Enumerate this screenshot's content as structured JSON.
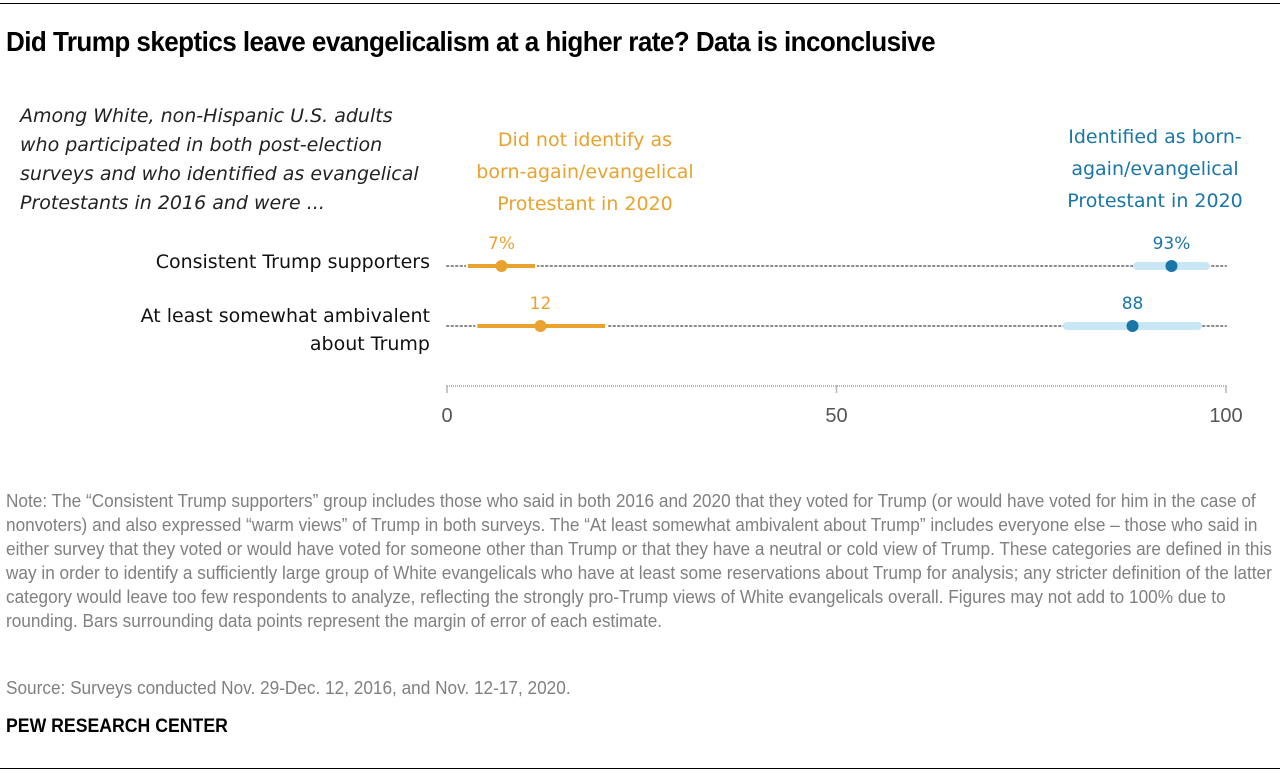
{
  "header": {
    "title": "Did Trump skeptics leave evangelicalism at a higher rate? Data is inconclusive",
    "subtitle": "Among White, non-Hispanic U.S. adults who participated in both post-election surveys and who identified as evangelical Protestants in 2016 and were ..."
  },
  "colors": {
    "orange": "#e9a22d",
    "blue": "#1a76a6",
    "blue_light": "#c9e6f4",
    "dots": "#8a8a8a",
    "axis": "#b5b5b5"
  },
  "chart_data": {
    "type": "scatter",
    "subtype": "dot-plot-with-error-bars",
    "title": "Did Trump skeptics leave evangelicalism at a higher rate? Data is inconclusive",
    "xlabel": "",
    "ylabel": "",
    "xlim": [
      0,
      100
    ],
    "x_ticks": [
      "0",
      "50",
      "100"
    ],
    "x_tick_values": [
      0,
      50,
      100
    ],
    "grid": false,
    "legend_placement": "top",
    "categories": [
      "Consistent Trump supporters",
      "At least somewhat ambivalent about Trump"
    ],
    "category_lines": [
      [
        "Consistent Trump supporters"
      ],
      [
        "At least somewhat ambivalent",
        "about Trump"
      ]
    ],
    "series": [
      {
        "name": "Did not identify as born-again/evangelical Protestant in 2020",
        "legend_lines": [
          "Did not identify as",
          "born-again/evangelical",
          "Protestant in 2020"
        ],
        "color": "#e9a22d",
        "values": [
          7,
          12
        ],
        "labels": [
          "7%",
          "12"
        ],
        "error_low": [
          2.7,
          3.9
        ],
        "error_high": [
          11.3,
          20.3
        ]
      },
      {
        "name": "Identified as born-again/evangelical Protestant in 2020",
        "legend_lines": [
          "Identified as born-",
          "again/evangelical",
          "Protestant in 2020"
        ],
        "color": "#1a76a6",
        "values": [
          93,
          88
        ],
        "labels": [
          "93%",
          "88"
        ],
        "error_low": [
          88.6,
          79.6
        ],
        "error_high": [
          97.4,
          96.4
        ]
      }
    ]
  },
  "footer": {
    "note": "Note: The “Consistent Trump supporters” group includes those who said in both 2016 and 2020 that they voted for Trump (or would have voted for him in the case of nonvoters) and also expressed “warm views” of Trump in both surveys. The “At least somewhat ambivalent about Trump” includes everyone else – those who said in either survey that they voted or would have voted for someone other than Trump or that they have a neutral or cold view of Trump. These categories are defined in this way in order to identify a sufficiently large group of White evangelicals who have at least some reservations about Trump for analysis; any stricter definition of the latter category would leave too few respondents to analyze, reflecting the strongly pro-Trump views of White evangelicals overall. Figures may not add to 100% due to rounding. Bars surrounding data points represent the margin of error of each estimate.",
    "source": "Source: Surveys conducted Nov. 29-Dec. 12, 2016, and Nov. 12-17, 2020.",
    "brand": "PEW RESEARCH CENTER"
  }
}
